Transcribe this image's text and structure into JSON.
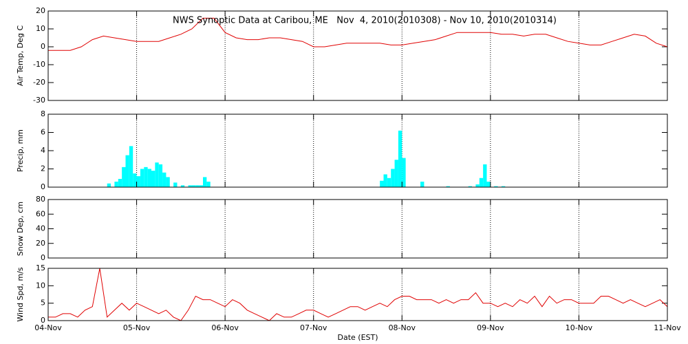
{
  "chart_data": [
    {
      "type": "line",
      "title": "NWS Synoptic Data at Caribou, ME   Nov  4, 2010(2010308) - Nov 10, 2010(2010314)",
      "ylabel": "Air Temp, Deg C",
      "color": "#e00000",
      "x": [
        0,
        3,
        6,
        9,
        12,
        15,
        18,
        21,
        24,
        27,
        30,
        33,
        36,
        39,
        42,
        45,
        48,
        51,
        54,
        57,
        60,
        63,
        66,
        69,
        72,
        75,
        78,
        81,
        84,
        87,
        90,
        93,
        96,
        99,
        102,
        105,
        108,
        111,
        114,
        117,
        120,
        123,
        126,
        129,
        132,
        135,
        138,
        141,
        144,
        147,
        150,
        153,
        156,
        159,
        162,
        165,
        168
      ],
      "values": [
        -2,
        -2,
        -2,
        0,
        4,
        6,
        5,
        4,
        3,
        3,
        3,
        5,
        7,
        10,
        16,
        16,
        8,
        5,
        4,
        4,
        5,
        5,
        4,
        3,
        0,
        0,
        1,
        2,
        2,
        2,
        2,
        1,
        1,
        2,
        3,
        4,
        6,
        8,
        8,
        8,
        8,
        7,
        7,
        6,
        7,
        7,
        5,
        3,
        2,
        1,
        1,
        3,
        5,
        7,
        6,
        2,
        0
      ],
      "xlim": [
        0,
        168
      ],
      "ylim": [
        -30,
        20
      ],
      "yticks": [
        -30,
        -20,
        -10,
        0,
        10,
        20
      ],
      "grid": true
    },
    {
      "type": "bar",
      "ylabel": "Precip, mm",
      "color": "#00ffff",
      "x": [
        16,
        18,
        19,
        20,
        21,
        22,
        23,
        24,
        25,
        26,
        27,
        28,
        29,
        30,
        31,
        32,
        34,
        36,
        38,
        39,
        40,
        41,
        42,
        43,
        90,
        91,
        92,
        93,
        94,
        95,
        96,
        101,
        108,
        114,
        116,
        117,
        118,
        119,
        121,
        123
      ],
      "values": [
        0.4,
        0.6,
        0.9,
        2.2,
        3.5,
        4.5,
        1.5,
        1.2,
        2.0,
        2.2,
        2.0,
        1.8,
        2.7,
        2.5,
        1.6,
        1.1,
        0.5,
        0.2,
        0.2,
        0.2,
        0.2,
        0.2,
        1.1,
        0.6,
        0.7,
        1.4,
        1.0,
        2.0,
        3.0,
        6.2,
        3.2,
        0.6,
        0.1,
        0.1,
        0.3,
        1.0,
        2.5,
        0.6,
        0.1,
        0.1
      ],
      "xlim": [
        0,
        168
      ],
      "ylim": [
        0,
        8
      ],
      "yticks": [
        0,
        2,
        4,
        6,
        8
      ],
      "grid": true
    },
    {
      "type": "line",
      "ylabel": "Snow Dep, cm",
      "color": "#e00000",
      "xlim": [
        0,
        168
      ],
      "ylim": [
        0,
        80
      ],
      "yticks": [
        0,
        20,
        40,
        60,
        80
      ],
      "grid": true
    },
    {
      "type": "line",
      "ylabel": "Wind Spd, m/s",
      "xlabel": "Date (EST)",
      "color": "#e00000",
      "x": [
        0,
        2,
        4,
        6,
        8,
        10,
        12,
        14,
        16,
        18,
        20,
        22,
        24,
        26,
        28,
        30,
        32,
        34,
        36,
        38,
        40,
        42,
        44,
        46,
        48,
        50,
        52,
        54,
        56,
        58,
        60,
        62,
        64,
        66,
        68,
        70,
        72,
        74,
        76,
        78,
        80,
        82,
        84,
        86,
        88,
        90,
        92,
        94,
        96,
        98,
        100,
        102,
        104,
        106,
        108,
        110,
        112,
        114,
        116,
        118,
        120,
        122,
        124,
        126,
        128,
        130,
        132,
        134,
        136,
        138,
        140,
        142,
        144,
        146,
        148,
        150,
        152,
        154,
        156,
        158,
        160,
        162,
        164,
        166,
        168
      ],
      "values": [
        1,
        1,
        2,
        2,
        1,
        3,
        4,
        15,
        1,
        3,
        5,
        3,
        5,
        4,
        3,
        2,
        3,
        1,
        0,
        3,
        7,
        6,
        6,
        5,
        4,
        6,
        5,
        3,
        2,
        1,
        0,
        2,
        1,
        1,
        2,
        3,
        3,
        2,
        1,
        2,
        3,
        4,
        4,
        3,
        4,
        5,
        4,
        6,
        7,
        7,
        6,
        6,
        6,
        5,
        6,
        5,
        6,
        6,
        8,
        5,
        5,
        4,
        5,
        4,
        6,
        5,
        7,
        4,
        7,
        5,
        6,
        6,
        5,
        5,
        5,
        7,
        7,
        6,
        5,
        6,
        5,
        4,
        5,
        6,
        4
      ],
      "xlim": [
        0,
        168
      ],
      "ylim": [
        0,
        15
      ],
      "yticks": [
        0,
        5,
        10,
        15
      ],
      "grid": true,
      "xticks": [
        {
          "value": 0,
          "label": "04-Nov"
        },
        {
          "value": 24,
          "label": "05-Nov"
        },
        {
          "value": 48,
          "label": "06-Nov"
        },
        {
          "value": 72,
          "label": "07-Nov"
        },
        {
          "value": 96,
          "label": "08-Nov"
        },
        {
          "value": 120,
          "label": "09-Nov"
        },
        {
          "value": 144,
          "label": "10-Nov"
        },
        {
          "value": 168,
          "label": "11-Nov"
        }
      ]
    }
  ]
}
